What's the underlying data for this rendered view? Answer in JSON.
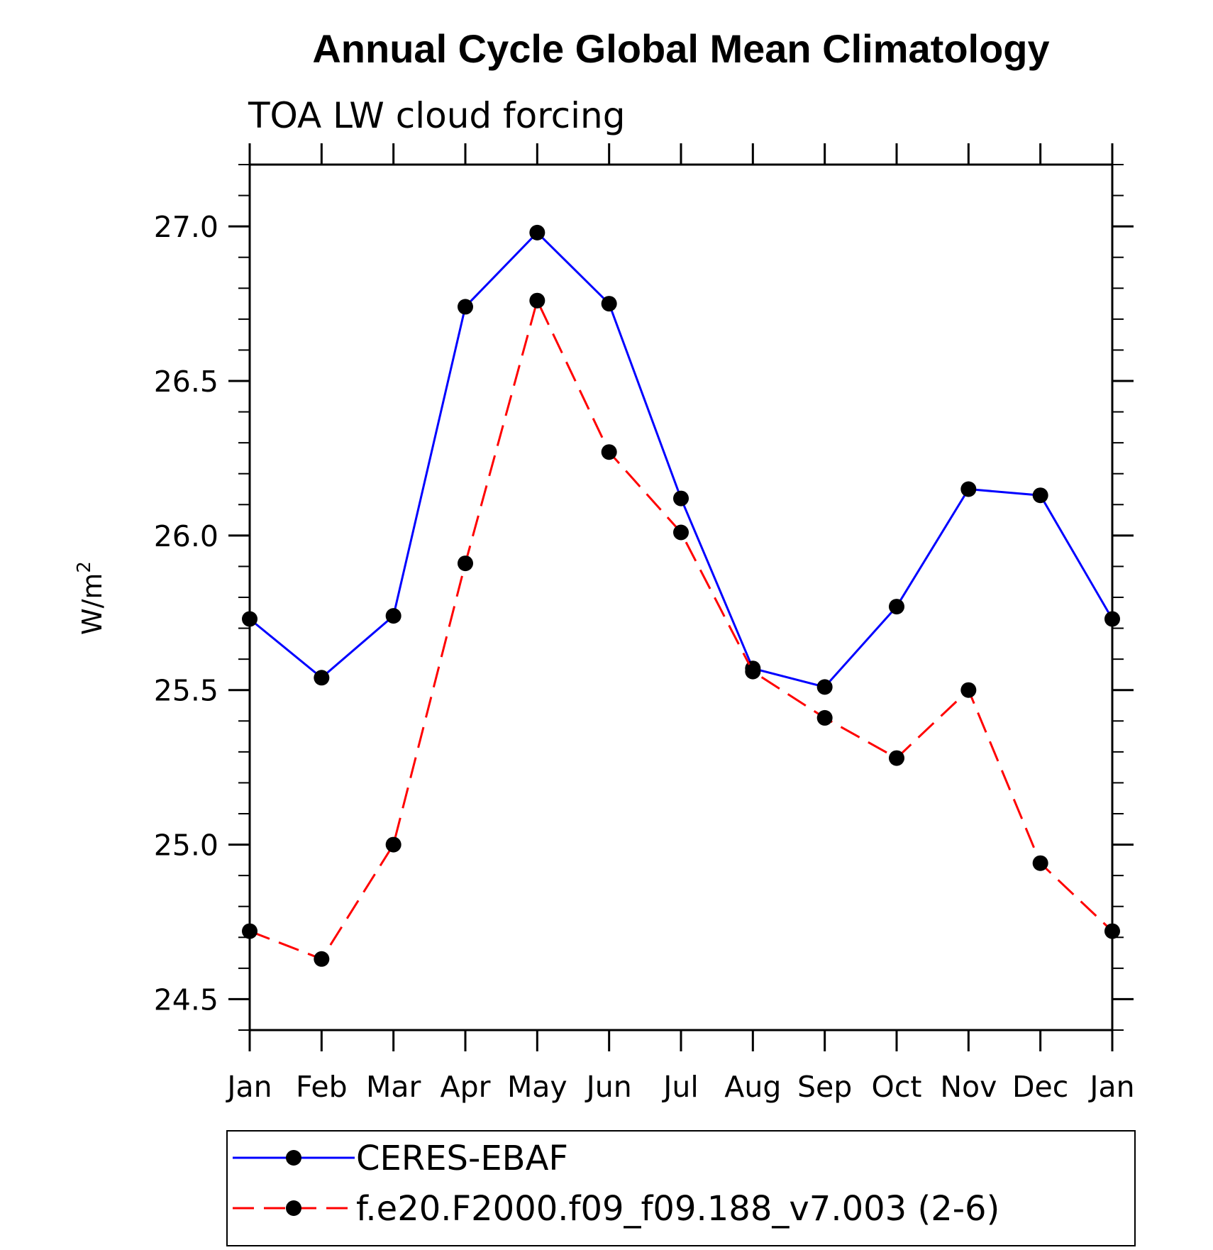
{
  "chart_data": {
    "type": "line",
    "title": "Annual Cycle Global Mean Climatology",
    "subtitle": "TOA LW cloud forcing",
    "ylabel": "W/m",
    "ylabel_sup": "2",
    "categories": [
      "Jan",
      "Feb",
      "Mar",
      "Apr",
      "May",
      "Jun",
      "Jul",
      "Aug",
      "Sep",
      "Oct",
      "Nov",
      "Dec",
      "Jan"
    ],
    "ylim": [
      24.4,
      27.2
    ],
    "yticks": [
      24.5,
      25.0,
      25.5,
      26.0,
      26.5,
      27.0
    ],
    "ytick_labels": [
      "24.5",
      "25.0",
      "25.5",
      "26.0",
      "26.5",
      "27.0"
    ],
    "grid": false,
    "legend_position": "bottom",
    "series": [
      {
        "name": "CERES-EBAF",
        "color": "#0000ff",
        "dash": "solid",
        "values": [
          25.73,
          25.54,
          25.74,
          26.74,
          26.98,
          26.75,
          26.12,
          25.57,
          25.51,
          25.77,
          26.15,
          26.13,
          25.73
        ]
      },
      {
        "name": "f.e20.F2000.f09_f09.188_v7.003 (2-6)",
        "color": "#ff0000",
        "dash": "dashed",
        "values": [
          24.72,
          24.63,
          25.0,
          25.91,
          26.76,
          26.27,
          26.01,
          25.56,
          25.41,
          25.28,
          25.5,
          24.94,
          24.72
        ]
      }
    ]
  }
}
